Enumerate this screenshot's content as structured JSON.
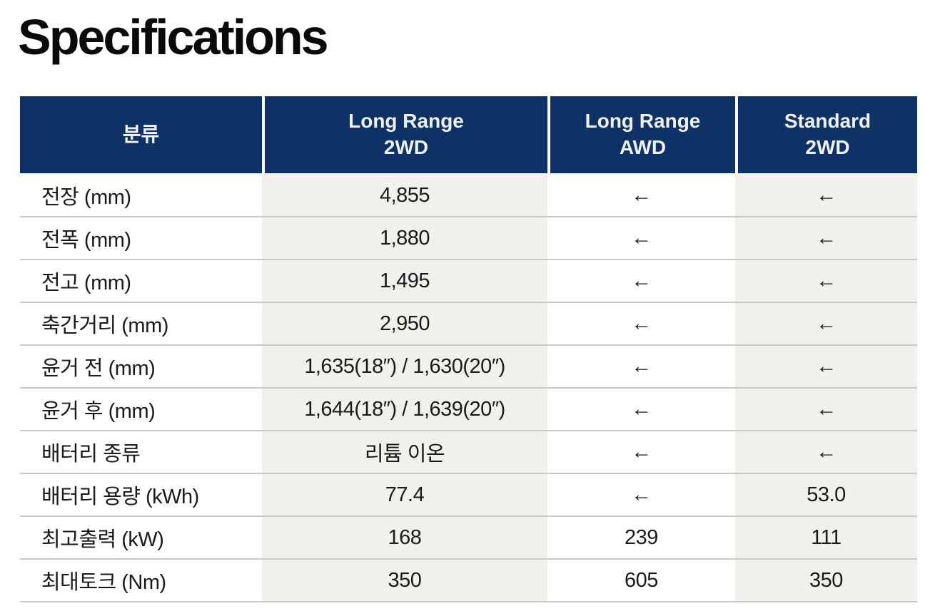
{
  "page": {
    "title": "Specifications"
  },
  "table": {
    "columns": [
      {
        "id": "category",
        "line1": "분류",
        "line2": ""
      },
      {
        "id": "long-range-2wd",
        "line1": "Long Range",
        "line2": "2WD"
      },
      {
        "id": "long-range-awd",
        "line1": "Long Range",
        "line2": "AWD"
      },
      {
        "id": "standard-2wd",
        "line1": "Standard",
        "line2": "2WD"
      }
    ],
    "same_as_left_symbol": "←",
    "rows": [
      {
        "label": "전장 (mm)",
        "values": [
          "4,855",
          "←",
          "←"
        ]
      },
      {
        "label": "전폭 (mm)",
        "values": [
          "1,880",
          "←",
          "←"
        ]
      },
      {
        "label": "전고 (mm)",
        "values": [
          "1,495",
          "←",
          "←"
        ]
      },
      {
        "label": "축간거리 (mm)",
        "values": [
          "2,950",
          "←",
          "←"
        ]
      },
      {
        "label": "윤거 전 (mm)",
        "values": [
          "1,635(18″) / 1,630(20″)",
          "←",
          "←"
        ]
      },
      {
        "label": "윤거 후 (mm)",
        "values": [
          "1,644(18″) / 1,639(20″)",
          "←",
          "←"
        ]
      },
      {
        "label": "배터리 종류",
        "values": [
          "리튬 이온",
          "←",
          "←"
        ]
      },
      {
        "label": "배터리 용량 (kWh)",
        "values": [
          "77.4",
          "←",
          "53.0"
        ]
      },
      {
        "label": "최고출력 (kW)",
        "values": [
          "168",
          "239",
          "111"
        ]
      },
      {
        "label": "최대토크 (Nm)",
        "values": [
          "350",
          "605",
          "350"
        ]
      }
    ]
  },
  "colors": {
    "header_background": "#0e3166",
    "header_text": "#eef3fa",
    "body_text": "#1a1a1a",
    "shaded_column_background": "#f2f0ed",
    "row_divider": "#cbc9c5",
    "page_background": "#ffffff"
  }
}
